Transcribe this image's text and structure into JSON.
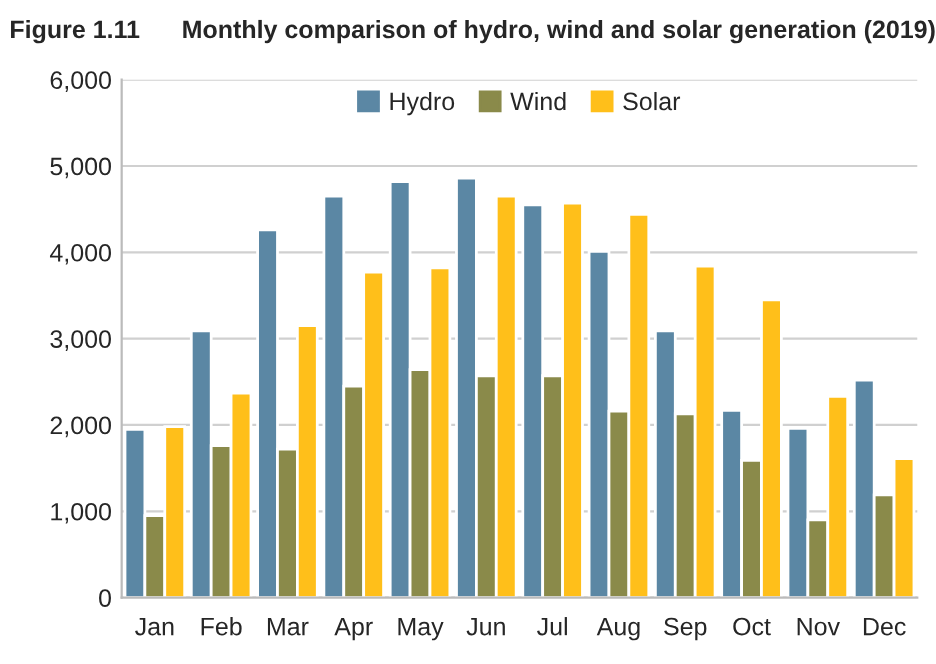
{
  "chart_data": {
    "type": "bar",
    "title": "Figure 1.11      Monthly comparison of hydro, wind and solar generation (2019)",
    "categories": [
      "Jan",
      "Feb",
      "Mar",
      "Apr",
      "May",
      "Jun",
      "Jul",
      "Aug",
      "Sep",
      "Oct",
      "Nov",
      "Dec"
    ],
    "series": [
      {
        "name": "Hydro",
        "color": "#5b87a4",
        "values": [
          1950,
          3090,
          4260,
          4650,
          4820,
          4860,
          4550,
          4010,
          3090,
          2170,
          1960,
          2520
        ]
      },
      {
        "name": "Wind",
        "color": "#8a8a4a",
        "values": [
          950,
          1760,
          1720,
          2450,
          2640,
          2570,
          2570,
          2160,
          2130,
          1590,
          900,
          1190
        ]
      },
      {
        "name": "Solar",
        "color": "#ffbf1a",
        "values": [
          1980,
          2370,
          3150,
          3770,
          3820,
          4650,
          4570,
          4440,
          3840,
          3450,
          2330,
          1610
        ]
      }
    ],
    "ylim": [
      0,
      6000
    ],
    "yticks": [
      {
        "value": 0,
        "label": "0"
      },
      {
        "value": 1000,
        "label": "1,000"
      },
      {
        "value": 2000,
        "label": "2,000"
      },
      {
        "value": 3000,
        "label": "3,000"
      },
      {
        "value": 4000,
        "label": "4,000"
      },
      {
        "value": 5000,
        "label": "5,000"
      },
      {
        "value": 6000,
        "label": "6,000"
      }
    ],
    "grid": "y",
    "legend": "top"
  }
}
